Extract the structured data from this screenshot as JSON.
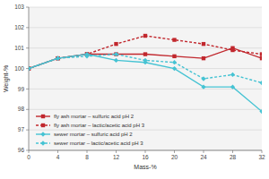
{
  "chart_data": {
    "type": "line",
    "x_label": "Mass-%",
    "y_label": "Weight-%",
    "x": [
      0,
      4,
      8,
      12,
      16,
      20,
      24,
      28,
      32
    ],
    "xlim": [
      0,
      32
    ],
    "xticks": [
      0,
      4,
      8,
      12,
      16,
      20,
      24,
      28,
      32
    ],
    "ylim": [
      96,
      103
    ],
    "yticks": [
      96,
      97,
      98,
      99,
      100,
      101,
      102,
      103
    ],
    "grid": true,
    "legend": "lower left",
    "series": [
      {
        "name": "fly ash mortar – sulfuric acid pH 2",
        "color": "#c1272d",
        "line_style": "solid",
        "marker": "square",
        "values": [
          100,
          100.5,
          100.7,
          100.7,
          100.7,
          100.6,
          100.5,
          101.0,
          100.5
        ]
      },
      {
        "name": "fly ash mortar – lactic/acetic acid pH 3",
        "color": "#c1272d",
        "line_style": "dashed",
        "marker": "square",
        "values": [
          100,
          100.5,
          100.7,
          101.2,
          101.6,
          101.4,
          101.2,
          100.9,
          100.7
        ]
      },
      {
        "name": "sewer mortar – sulfuric acid pH 2",
        "color": "#45c3d3",
        "line_style": "solid",
        "marker": "diamond",
        "values": [
          100,
          100.5,
          100.7,
          100.4,
          100.3,
          100.0,
          99.1,
          99.1,
          97.9
        ]
      },
      {
        "name": "sewer mortar – lactic/acetic acid pH 3",
        "color": "#45c3d3",
        "line_style": "dashed",
        "marker": "diamond",
        "values": [
          100,
          100.5,
          100.6,
          100.7,
          100.4,
          100.3,
          99.5,
          99.7,
          99.3
        ]
      }
    ]
  }
}
